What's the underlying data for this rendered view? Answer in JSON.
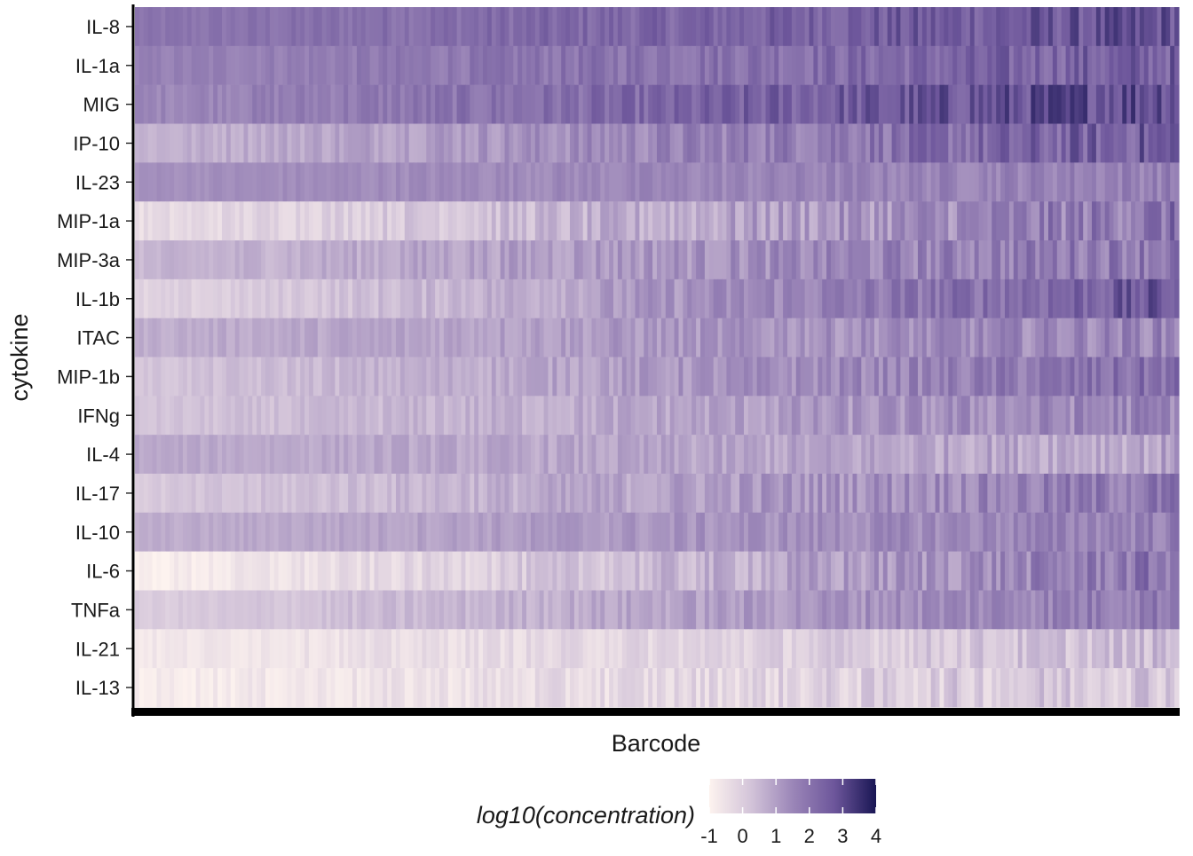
{
  "chart_data": {
    "type": "heatmap",
    "xlabel": "Barcode",
    "ylabel": "cytokine",
    "x_tick_labels_shown": false,
    "grid": false,
    "legend": {
      "title": "log10(concentration)",
      "position": "bottom",
      "ticks": [
        "-1",
        "0",
        "1",
        "2",
        "3",
        "4"
      ],
      "range": [
        -1,
        4
      ],
      "colors": [
        "#fdf3ef",
        "#d3c4d9",
        "#9b86b8",
        "#6d569b",
        "#191654"
      ]
    },
    "rows": [
      {
        "name": "IL-8",
        "low": 1.9,
        "high": 2.8,
        "noise": 0.55
      },
      {
        "name": "IL-1a",
        "low": 1.6,
        "high": 2.5,
        "noise": 0.55
      },
      {
        "name": "MIG",
        "low": 1.5,
        "high": 3.1,
        "noise": 0.65
      },
      {
        "name": "IP-10",
        "low": 0.6,
        "high": 2.6,
        "noise": 0.65
      },
      {
        "name": "IL-23",
        "low": 1.3,
        "high": 1.7,
        "noise": 0.35
      },
      {
        "name": "MIP-1a",
        "low": -0.4,
        "high": 2.0,
        "noise": 0.7
      },
      {
        "name": "MIP-3a",
        "low": 0.5,
        "high": 2.0,
        "noise": 0.6
      },
      {
        "name": "IL-1b",
        "low": -0.2,
        "high": 2.7,
        "noise": 0.55
      },
      {
        "name": "ITAC",
        "low": 0.7,
        "high": 1.6,
        "noise": 0.5
      },
      {
        "name": "MIP-1b",
        "low": 0.2,
        "high": 2.1,
        "noise": 0.5
      },
      {
        "name": "IFNg",
        "low": 0.2,
        "high": 1.6,
        "noise": 0.5
      },
      {
        "name": "IL-4",
        "low": 0.8,
        "high": 0.9,
        "noise": 0.45
      },
      {
        "name": "IL-17",
        "low": 0.1,
        "high": 1.9,
        "noise": 0.55
      },
      {
        "name": "IL-10",
        "low": 0.7,
        "high": 1.7,
        "noise": 0.4
      },
      {
        "name": "IL-6",
        "low": -0.9,
        "high": 2.0,
        "noise": 0.6
      },
      {
        "name": "TNFa",
        "low": 0.0,
        "high": 1.9,
        "noise": 0.45
      },
      {
        "name": "IL-21",
        "low": -0.7,
        "high": 0.4,
        "noise": 0.45
      },
      {
        "name": "IL-13",
        "low": -0.8,
        "high": 0.3,
        "noise": 0.55
      }
    ]
  }
}
